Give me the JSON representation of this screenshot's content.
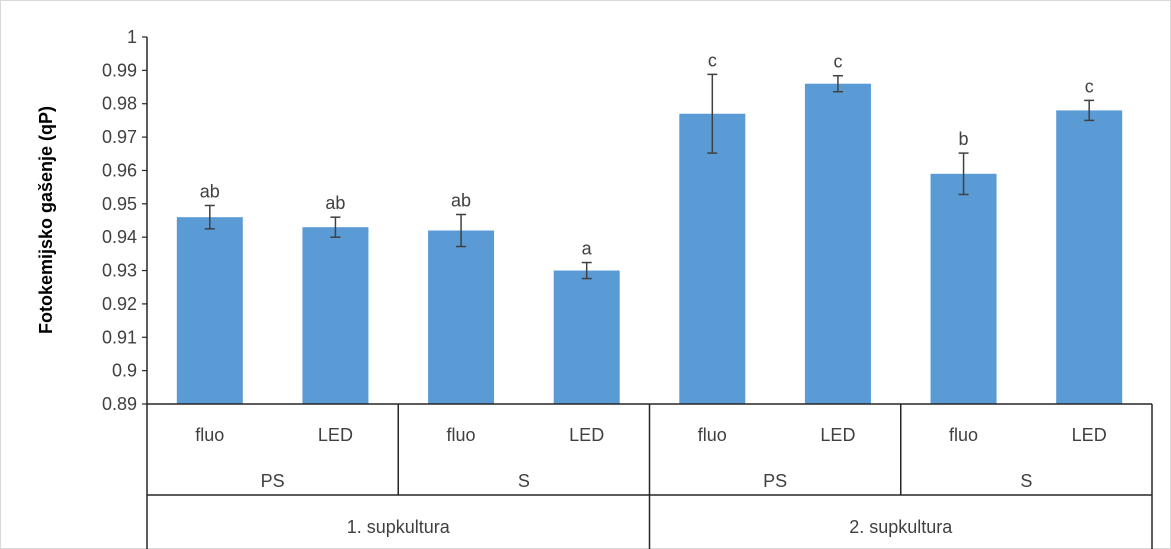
{
  "chart_data": {
    "type": "bar",
    "title": "",
    "xlabel": "",
    "ylabel": "Fotokemijsko gašenje (qP)",
    "ylim": [
      0.89,
      1.0
    ],
    "yticks": [
      "0.89",
      "0.9",
      "0.91",
      "0.92",
      "0.93",
      "0.94",
      "0.95",
      "0.96",
      "0.97",
      "0.98",
      "0.99",
      "1"
    ],
    "categories": [
      "fluo",
      "LED",
      "fluo",
      "LED",
      "fluo",
      "LED",
      "fluo",
      "LED"
    ],
    "group_level2": [
      "PS",
      "S",
      "PS",
      "S"
    ],
    "group_level3": [
      "1. supkultura",
      "2. supkultura"
    ],
    "values": [
      0.946,
      0.943,
      0.942,
      0.93,
      0.977,
      0.986,
      0.959,
      0.978
    ],
    "errors": [
      0.0035,
      0.003,
      0.0048,
      0.0024,
      0.0118,
      0.0024,
      0.0062,
      0.003
    ],
    "annotations": [
      "ab",
      "ab",
      "ab",
      "a",
      "c",
      "c",
      "b",
      "c"
    ],
    "bar_color": "#5b9bd5",
    "grid": false,
    "legend": "none"
  }
}
